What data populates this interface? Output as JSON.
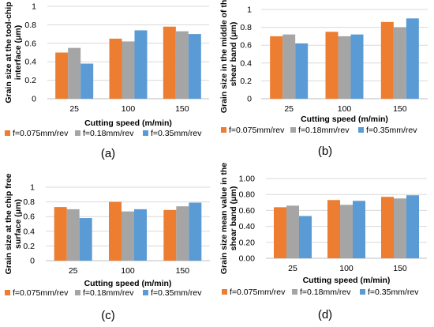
{
  "colors": {
    "s1": "#ED7D31",
    "s2": "#A5A5A5",
    "s3": "#5B9BD5",
    "grid": "#D9D9D9",
    "axis": "#BFBFBF"
  },
  "chart_data": [
    {
      "type": "bar",
      "caption": "(a)",
      "categories": [
        "25",
        "100",
        "150"
      ],
      "xlabel": "Cutting speed (m/min)",
      "ylabel": [
        "Grain size at the tool-chip",
        "interface (μm)"
      ],
      "ylim": [
        0,
        1
      ],
      "ticks": [
        "0",
        "0.2",
        "0.4",
        "0.6",
        "0.8",
        "1"
      ],
      "series": [
        {
          "name": "f=0.075mm/rev",
          "values": [
            0.5,
            0.65,
            0.78
          ]
        },
        {
          "name": "f=0.18mm/rev",
          "values": [
            0.55,
            0.62,
            0.73
          ]
        },
        {
          "name": "f=0.35mm/rev",
          "values": [
            0.38,
            0.74,
            0.7
          ]
        }
      ],
      "grid": true,
      "legend": "bottom"
    },
    {
      "type": "bar",
      "caption": "(b)",
      "categories": [
        "25",
        "100",
        "150"
      ],
      "xlabel": "Cutting speed (m/min)",
      "ylabel": [
        "Grain size in the middle of the",
        "shear band (μm)"
      ],
      "ylim": [
        0,
        1
      ],
      "ticks": [
        "0",
        "0.2",
        "0.4",
        "0.6",
        "0.8",
        "1"
      ],
      "series": [
        {
          "name": "f=0.075mm/rev",
          "values": [
            0.7,
            0.75,
            0.86
          ]
        },
        {
          "name": "f=0.18mm/rev",
          "values": [
            0.72,
            0.7,
            0.8
          ]
        },
        {
          "name": "f=0.35mm/rev",
          "values": [
            0.62,
            0.72,
            0.9
          ]
        }
      ],
      "grid": true,
      "legend": "bottom"
    },
    {
      "type": "bar",
      "caption": "(c)",
      "categories": [
        "25",
        "100",
        "150"
      ],
      "xlabel": "Cutting speed (m/min)",
      "ylabel": [
        "Grain size at the chip free",
        "surface (μm)"
      ],
      "ylim": [
        0,
        1
      ],
      "ticks": [
        "0",
        "0.2",
        "0.4",
        "0.6",
        "0.8",
        "1"
      ],
      "series": [
        {
          "name": "f=0.075mm/rev",
          "values": [
            0.73,
            0.8,
            0.69
          ]
        },
        {
          "name": "f=0.18mm/rev",
          "values": [
            0.7,
            0.67,
            0.74
          ]
        },
        {
          "name": "f=0.35mm/rev",
          "values": [
            0.58,
            0.7,
            0.79
          ]
        }
      ],
      "grid": true,
      "legend": "bottom"
    },
    {
      "type": "bar",
      "caption": "(d)",
      "categories": [
        "25",
        "100",
        "150"
      ],
      "xlabel": "Cutting speed (m/min)",
      "ylabel": [
        "Grain size mean value in the",
        "shear band (μm)"
      ],
      "ylim": [
        0,
        1
      ],
      "ticks": [
        "0.00",
        "0.20",
        "0.40",
        "0.60",
        "0.80",
        "1.00"
      ],
      "series": [
        {
          "name": "f=0.075mm/rev",
          "values": [
            0.64,
            0.73,
            0.77
          ]
        },
        {
          "name": "f=0.18mm/rev",
          "values": [
            0.66,
            0.67,
            0.75
          ]
        },
        {
          "name": "f=0.35mm/rev",
          "values": [
            0.53,
            0.72,
            0.79
          ]
        }
      ],
      "grid": true,
      "legend": "bottom"
    }
  ]
}
